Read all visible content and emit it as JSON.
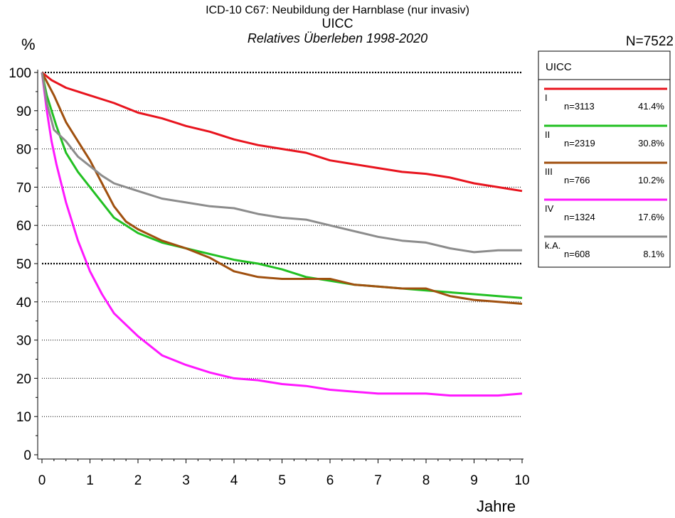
{
  "header": {
    "title": "ICD-10 C67: Neubildung der Harnblase (nur invasiv)",
    "subtitle": "UICC",
    "subtitle2": "Relatives Überleben 1998-2020",
    "n_total": "N=7522"
  },
  "chart_data": {
    "type": "line",
    "title": "ICD-10 C67: Neubildung der Harnblase (nur invasiv)",
    "subtitle": "Relatives Überleben 1998-2020",
    "xlabel": "Jahre",
    "ylabel": "%",
    "xlim": [
      0,
      10
    ],
    "ylim": [
      0,
      100
    ],
    "xticks": [
      "0",
      "1",
      "2",
      "3",
      "4",
      "5",
      "6",
      "7",
      "8",
      "9",
      "10"
    ],
    "yticks": [
      "0",
      "10",
      "20",
      "30",
      "40",
      "50",
      "60",
      "70",
      "80",
      "90",
      "100"
    ],
    "grid": "horizontal dotted, bold at 50 and 100",
    "legend": {
      "title": "UICC",
      "position": "right",
      "entries": [
        {
          "label": "I",
          "n": "n=3113",
          "pct": "41.4%",
          "color": "#e8141e"
        },
        {
          "label": "II",
          "n": "n=2319",
          "pct": "30.8%",
          "color": "#22c022"
        },
        {
          "label": "III",
          "n": "n=766",
          "pct": "10.2%",
          "color": "#a0500f"
        },
        {
          "label": "IV",
          "n": "n=1324",
          "pct": "17.6%",
          "color": "#ff18ff"
        },
        {
          "label": "k.A.",
          "n": "n=608",
          "pct": "8.1%",
          "color": "#8c8c8c"
        }
      ]
    },
    "series": [
      {
        "name": "I",
        "color": "#e8141e",
        "x": [
          0,
          0.2,
          0.5,
          1,
          1.5,
          2,
          2.5,
          3,
          3.5,
          4,
          4.5,
          5,
          5.5,
          6,
          6.5,
          7,
          7.5,
          8,
          8.5,
          9,
          9.5,
          10
        ],
        "y": [
          100,
          98,
          96,
          94,
          92,
          89.5,
          88,
          86,
          84.5,
          82.5,
          81,
          80,
          79,
          77,
          76,
          75,
          74,
          73.5,
          72.5,
          71,
          70,
          69
        ]
      },
      {
        "name": "II",
        "color": "#22c022",
        "x": [
          0,
          0.1,
          0.3,
          0.5,
          0.75,
          1,
          1.5,
          2,
          2.5,
          3,
          3.5,
          4,
          4.5,
          5,
          5.5,
          6,
          6.5,
          7,
          7.5,
          8,
          8.5,
          9,
          9.5,
          10
        ],
        "y": [
          100,
          94,
          86,
          79,
          74,
          70,
          62,
          58,
          55.5,
          54,
          52.5,
          51,
          50,
          48.5,
          46.5,
          45.5,
          44.5,
          44,
          43.5,
          43,
          42.5,
          42,
          41.5,
          41
        ]
      },
      {
        "name": "III",
        "color": "#a0500f",
        "x": [
          0,
          0.25,
          0.5,
          0.75,
          1,
          1.25,
          1.5,
          1.75,
          2,
          2.5,
          3,
          3.5,
          4,
          4.5,
          5,
          5.5,
          6,
          6.5,
          7,
          7.5,
          8,
          8.5,
          9,
          9.5,
          10
        ],
        "y": [
          100,
          94,
          87,
          82,
          77,
          71,
          65,
          61,
          59,
          56,
          54,
          51.5,
          48,
          46.5,
          46,
          46,
          46,
          44.5,
          44,
          43.5,
          43.5,
          41.5,
          40.5,
          40,
          39.5
        ]
      },
      {
        "name": "IV",
        "color": "#ff18ff",
        "x": [
          0,
          0.1,
          0.2,
          0.3,
          0.5,
          0.75,
          1,
          1.25,
          1.5,
          1.75,
          2,
          2.5,
          3,
          3.5,
          4,
          4.5,
          5,
          5.5,
          6,
          6.5,
          7,
          7.5,
          8,
          8.5,
          9,
          9.5,
          10
        ],
        "y": [
          100,
          90,
          82,
          76,
          66,
          56,
          48,
          42,
          37,
          34,
          31,
          26,
          23.5,
          21.5,
          20,
          19.5,
          18.5,
          18,
          17,
          16.5,
          16,
          16,
          16,
          15.5,
          15.5,
          15.5,
          16
        ]
      },
      {
        "name": "k.A.",
        "color": "#8c8c8c",
        "x": [
          0,
          0.1,
          0.25,
          0.5,
          0.75,
          1,
          1.25,
          1.5,
          2,
          2.5,
          3,
          3.5,
          4,
          4.5,
          5,
          5.5,
          6,
          6.5,
          7,
          7.5,
          8,
          8.5,
          9,
          9.5,
          10
        ],
        "y": [
          100,
          92,
          85,
          82,
          78,
          75.5,
          73,
          71,
          69,
          67,
          66,
          65,
          64.5,
          63,
          62,
          61.5,
          60,
          58.5,
          57,
          56,
          55.5,
          54,
          53,
          53.5,
          53.5
        ]
      }
    ]
  }
}
